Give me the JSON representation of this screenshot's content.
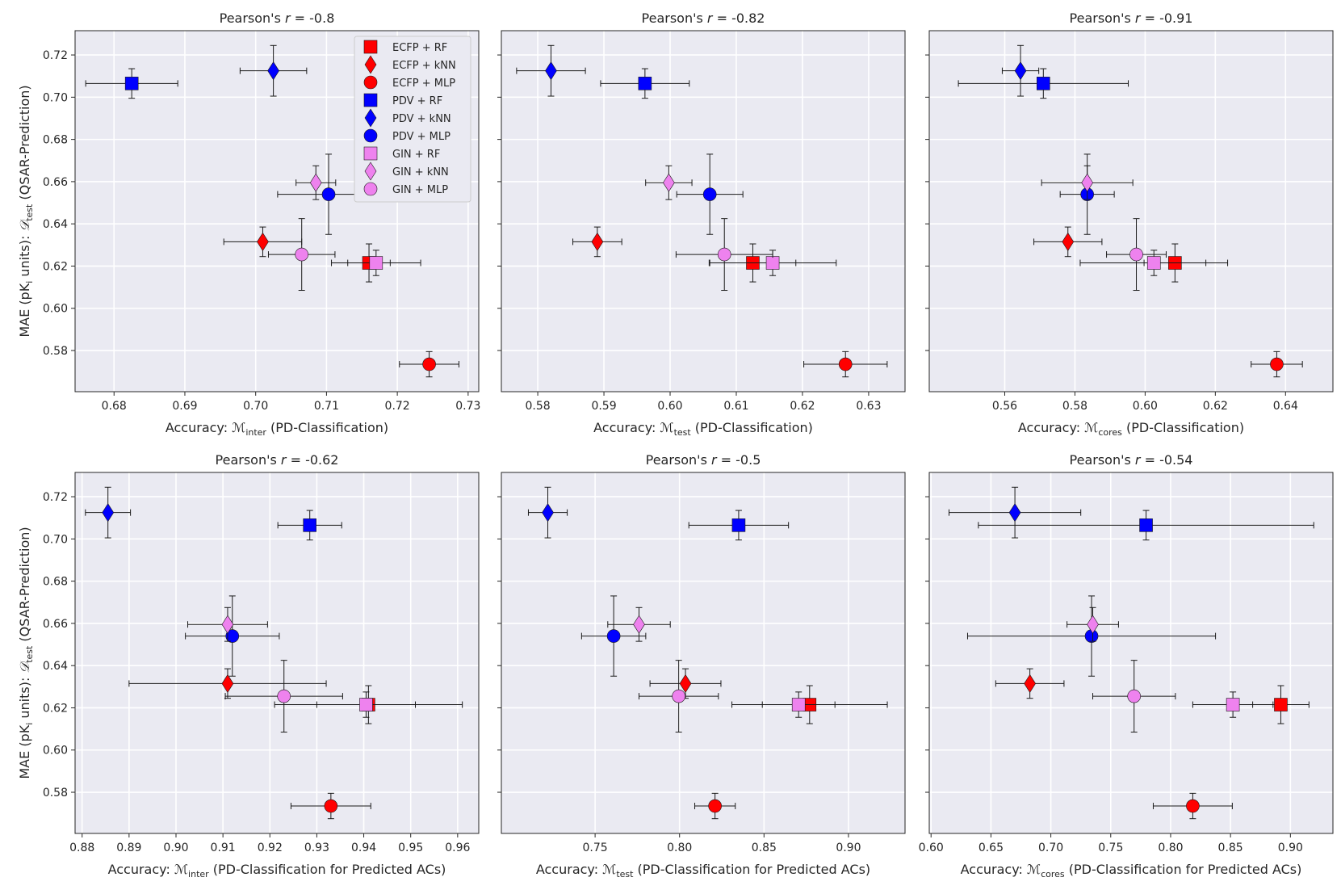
{
  "figure": {
    "ylabel_prefix": "MAE (pK",
    "ylabel_sub_i": "i",
    "ylabel_mid": " units): ",
    "ylabel_D": "𝒟",
    "ylabel_sub_test": "test",
    "ylabel_suffix": " (QSAR-Prediction)"
  },
  "methods": [
    {
      "name": "ECFP + RF",
      "color": "#ff0000",
      "marker": "square"
    },
    {
      "name": "ECFP + kNN",
      "color": "#ff0000",
      "marker": "diamond"
    },
    {
      "name": "ECFP + MLP",
      "color": "#ff0000",
      "marker": "circle"
    },
    {
      "name": "PDV + RF",
      "color": "#0000ff",
      "marker": "square"
    },
    {
      "name": "PDV + kNN",
      "color": "#0000ff",
      "marker": "diamond"
    },
    {
      "name": "PDV + MLP",
      "color": "#0000ff",
      "marker": "circle"
    },
    {
      "name": "GIN + RF",
      "color": "#ee82ee",
      "marker": "square"
    },
    {
      "name": "GIN + kNN",
      "color": "#ee82ee",
      "marker": "diamond"
    },
    {
      "name": "GIN + MLP",
      "color": "#ee82ee",
      "marker": "circle"
    }
  ],
  "legend": {
    "location": "upper-right of first panel"
  },
  "y_common": {
    "values": [
      0.6215,
      0.6315,
      0.5735,
      0.7065,
      0.7125,
      0.654,
      0.6215,
      0.6595,
      0.6255
    ],
    "yerr": [
      0.009,
      0.007,
      0.006,
      0.007,
      0.012,
      0.019,
      0.006,
      0.008,
      0.017
    ],
    "ylim": [
      0.5605,
      0.7315
    ],
    "yticks": [
      0.58,
      0.6,
      0.62,
      0.64,
      0.66,
      0.68,
      0.7,
      0.72
    ]
  },
  "chart_data": [
    {
      "type": "scatter",
      "title_prefix": "Pearson's ",
      "title_r": "r",
      "title_suffix": " = -0.8",
      "xlabel_prefix": "Accuracy: ",
      "xlabel_M": "ℳ",
      "xlabel_sub": "inter",
      "xlabel_suffix": " (PD-Classification)",
      "xlim": [
        0.6745,
        0.7315
      ],
      "xticks": [
        0.68,
        0.69,
        0.7,
        0.71,
        0.72,
        0.73
      ],
      "xtick_labels": [
        "0.68",
        "0.69",
        "0.70",
        "0.71",
        "0.72",
        "0.73"
      ],
      "show_legend": true,
      "x": [
        0.716,
        0.701,
        0.7245,
        0.6825,
        0.7025,
        0.7103,
        0.717,
        0.7085,
        0.7065
      ],
      "xerr": [
        0.003,
        0.0055,
        0.0042,
        0.0065,
        0.0047,
        0.0072,
        0.0063,
        0.0028,
        0.0047
      ]
    },
    {
      "type": "scatter",
      "title_prefix": "Pearson's ",
      "title_r": "r",
      "title_suffix": " = -0.82",
      "xlabel_prefix": "Accuracy: ",
      "xlabel_M": "ℳ",
      "xlabel_sub": "test",
      "xlabel_suffix": " (PD-Classification)",
      "xlim": [
        0.5745,
        0.6355
      ],
      "xticks": [
        0.58,
        0.59,
        0.6,
        0.61,
        0.62,
        0.63
      ],
      "xtick_labels": [
        "0.58",
        "0.59",
        "0.60",
        "0.61",
        "0.62",
        "0.63"
      ],
      "show_legend": false,
      "x": [
        0.6125,
        0.589,
        0.6265,
        0.5962,
        0.582,
        0.606,
        0.6155,
        0.5998,
        0.6082
      ],
      "xerr": [
        0.0065,
        0.0037,
        0.0063,
        0.0067,
        0.0052,
        0.005,
        0.0096,
        0.0035,
        0.0073
      ]
    },
    {
      "type": "scatter",
      "title_prefix": "Pearson's ",
      "title_r": "r",
      "title_suffix": " = -0.91",
      "xlabel_prefix": "Accuracy: ",
      "xlabel_M": "ℳ",
      "xlabel_sub": "cores",
      "xlabel_suffix": " (PD-Classification)",
      "xlim": [
        0.5385,
        0.6535
      ],
      "xticks": [
        0.56,
        0.58,
        0.6,
        0.62,
        0.64
      ],
      "xtick_labels": [
        "0.56",
        "0.58",
        "0.60",
        "0.62",
        "0.64"
      ],
      "show_legend": false,
      "x": [
        0.6085,
        0.578,
        0.6375,
        0.571,
        0.5645,
        0.5835,
        0.6025,
        0.5835,
        0.5975
      ],
      "xerr": [
        0.0088,
        0.0097,
        0.0073,
        0.0242,
        0.0052,
        0.0077,
        0.021,
        0.013,
        0.0085
      ]
    },
    {
      "type": "scatter",
      "title_prefix": "Pearson's ",
      "title_r": "r",
      "title_suffix": " = -0.62",
      "xlabel_prefix": "Accuracy: ",
      "xlabel_M": "ℳ",
      "xlabel_sub": "inter",
      "xlabel_suffix": " (PD-Classification for Predicted ACs)",
      "xlim": [
        0.8785,
        0.9645
      ],
      "xticks": [
        0.88,
        0.89,
        0.9,
        0.91,
        0.92,
        0.93,
        0.94,
        0.95,
        0.96
      ],
      "xtick_labels": [
        "0.88",
        "0.89",
        "0.90",
        "0.91",
        "0.92",
        "0.93",
        "0.94",
        "0.95",
        "0.96"
      ],
      "show_legend": false,
      "x": [
        0.941,
        0.911,
        0.933,
        0.9285,
        0.8855,
        0.912,
        0.9405,
        0.911,
        0.923
      ],
      "xerr": [
        0.02,
        0.021,
        0.0085,
        0.0068,
        0.0048,
        0.01,
        0.0105,
        0.0085,
        0.0125
      ]
    },
    {
      "type": "scatter",
      "title_prefix": "Pearson's ",
      "title_r": "r",
      "title_suffix": " = -0.5",
      "xlabel_prefix": "Accuracy: ",
      "xlabel_M": "ℳ",
      "xlabel_sub": "test",
      "xlabel_suffix": " (PD-Classification for Predicted ACs)",
      "xlim": [
        0.6945,
        0.9335
      ],
      "xticks": [
        0.75,
        0.8,
        0.85,
        0.9
      ],
      "xtick_labels": [
        "0.75",
        "0.80",
        "0.85",
        "0.90"
      ],
      "show_legend": false,
      "x": [
        0.877,
        0.8035,
        0.821,
        0.835,
        0.722,
        0.761,
        0.8705,
        0.776,
        0.7995
      ],
      "xerr": [
        0.046,
        0.021,
        0.012,
        0.0295,
        0.0115,
        0.019,
        0.0215,
        0.0185,
        0.0235
      ]
    },
    {
      "type": "scatter",
      "title_prefix": "Pearson's ",
      "title_r": "r",
      "title_suffix": " = -0.54",
      "xlabel_prefix": "Accuracy: ",
      "xlabel_M": "ℳ",
      "xlabel_sub": "cores",
      "xlabel_suffix": " (PD-Classification for Predicted ACs)",
      "xlim": [
        0.5985,
        0.9355
      ],
      "xticks": [
        0.6,
        0.65,
        0.7,
        0.75,
        0.8,
        0.85,
        0.9
      ],
      "xtick_labels": [
        "0.60",
        "0.65",
        "0.70",
        "0.75",
        "0.80",
        "0.85",
        "0.90"
      ],
      "show_legend": false,
      "x": [
        0.892,
        0.6825,
        0.8185,
        0.7795,
        0.67,
        0.734,
        0.852,
        0.735,
        0.7695
      ],
      "xerr": [
        0.0235,
        0.0285,
        0.033,
        0.14,
        0.055,
        0.1035,
        0.0335,
        0.0215,
        0.0345
      ]
    }
  ]
}
